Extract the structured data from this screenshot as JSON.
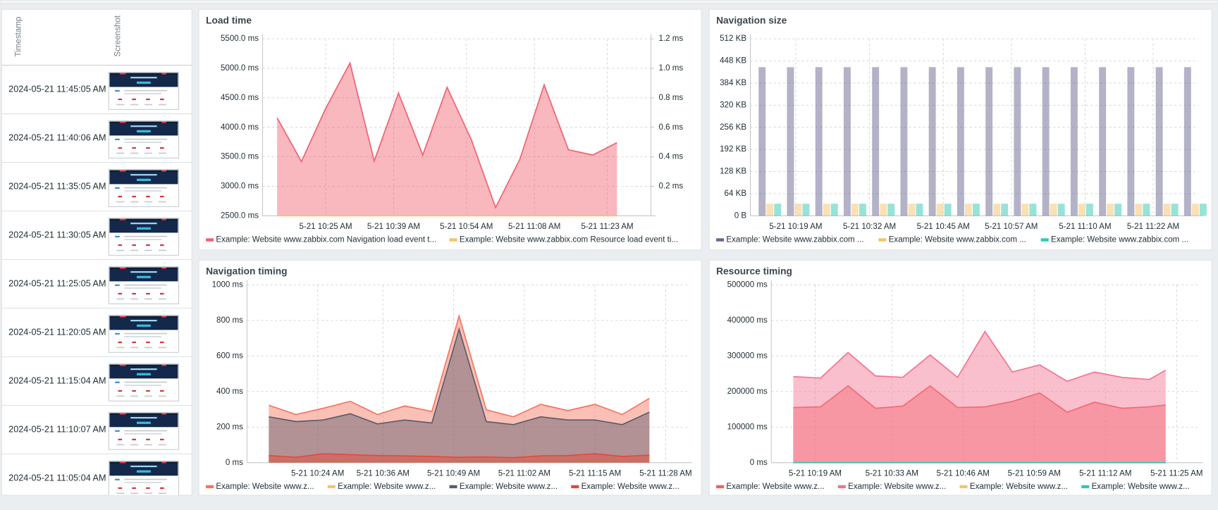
{
  "table": {
    "headers": [
      "Timestamp",
      "Screenshot"
    ],
    "rows": [
      "2024-05-21 11:45:05 AM",
      "2024-05-21 11:40:06 AM",
      "2024-05-21 11:35:05 AM",
      "2024-05-21 11:30:05 AM",
      "2024-05-21 11:25:05 AM",
      "2024-05-21 11:20:05 AM",
      "2024-05-21 11:15:04 AM",
      "2024-05-21 11:10:07 AM",
      "2024-05-21 11:05:04 AM"
    ]
  },
  "chart_data": [
    {
      "type": "area",
      "title": "Load time",
      "x": [
        "5-21 10:15 AM",
        "5-21 10:20 AM",
        "5-21 10:25 AM",
        "5-21 10:30 AM",
        "5-21 10:35 AM",
        "5-21 10:40 AM",
        "5-21 10:45 AM",
        "5-21 10:50 AM",
        "5-21 10:55 AM",
        "5-21 11:00 AM",
        "5-21 11:05 AM",
        "5-21 11:10 AM",
        "5-21 11:15 AM",
        "5-21 11:20 AM",
        "5-21 11:25 AM"
      ],
      "xlim": [
        "5-21 10:12 AM",
        "5-21 11:32 AM"
      ],
      "xticks": [
        "5-21 10:25 AM",
        "5-21 10:39 AM",
        "5-21 10:54 AM",
        "5-21 11:08 AM",
        "5-21 11:23 AM"
      ],
      "ylim": [
        2500,
        5500
      ],
      "yticks": [
        {
          "value": 2500,
          "label": "2500.0 ms"
        },
        {
          "value": 3000,
          "label": "3000.0 ms"
        },
        {
          "value": 3500,
          "label": "3500.0 ms"
        },
        {
          "value": 4000,
          "label": "4000.0 ms"
        },
        {
          "value": 4500,
          "label": "4500.0 ms"
        },
        {
          "value": 5000,
          "label": "5000.0 ms"
        },
        {
          "value": 5500,
          "label": "5500.0 ms"
        }
      ],
      "y2lim": [
        0,
        1.2
      ],
      "y2ticks": [
        {
          "value": 0.2,
          "label": "0.2 ms"
        },
        {
          "value": 0.4,
          "label": "0.4 ms"
        },
        {
          "value": 0.6,
          "label": "0.6 ms"
        },
        {
          "value": 0.8,
          "label": "0.8 ms"
        },
        {
          "value": 1.0,
          "label": "1.0 ms"
        },
        {
          "value": 1.2,
          "label": "1.2 ms"
        }
      ],
      "grid": true,
      "series": [
        {
          "name": "Example: Website www.zabbix.com Navigation load event t...",
          "color": "#f2606f",
          "values": [
            4160,
            3420,
            4320,
            5090,
            3430,
            4580,
            3530,
            4680,
            3790,
            2640,
            3460,
            4720,
            3620,
            3530,
            3740
          ]
        },
        {
          "name": "Example: Website www.zabbix.com Resource load event ti...",
          "color": "#f5c26b",
          "axis": "y2",
          "values": [
            0,
            0,
            0,
            0,
            0,
            0,
            0,
            0,
            0,
            0,
            0,
            0,
            0,
            0,
            0
          ]
        }
      ]
    },
    {
      "type": "bar",
      "title": "Navigation size",
      "x": [
        "5-21 10:13 AM",
        "5-21 10:18 AM",
        "5-21 10:23 AM",
        "5-21 10:28 AM",
        "5-21 10:33 AM",
        "5-21 10:38 AM",
        "5-21 10:43 AM",
        "5-21 10:48 AM",
        "5-21 10:53 AM",
        "5-21 10:58 AM",
        "5-21 11:03 AM",
        "5-21 11:08 AM",
        "5-21 11:13 AM",
        "5-21 11:18 AM",
        "5-21 11:23 AM",
        "5-21 11:28 AM"
      ],
      "xlim": [
        "5-21 10:11 AM",
        "5-21 11:30 AM"
      ],
      "xticks": [
        "5-21 10:19 AM",
        "5-21 10:32 AM",
        "5-21 10:45 AM",
        "5-21 10:57 AM",
        "5-21 11:10 AM",
        "5-21 11:22 AM"
      ],
      "ylim": [
        0,
        512
      ],
      "yticks": [
        {
          "value": 0,
          "label": "0 B"
        },
        {
          "value": 64,
          "label": "64 KB"
        },
        {
          "value": 128,
          "label": "128 KB"
        },
        {
          "value": 192,
          "label": "192 KB"
        },
        {
          "value": 256,
          "label": "256 KB"
        },
        {
          "value": 320,
          "label": "320 KB"
        },
        {
          "value": 384,
          "label": "384 KB"
        },
        {
          "value": 448,
          "label": "448 KB"
        },
        {
          "value": 512,
          "label": "512 KB"
        }
      ],
      "grid": true,
      "series": [
        {
          "name": "Example: Website www.zabbix.com ...",
          "color": "#67658f",
          "values": [
            430,
            430,
            430,
            430,
            430,
            430,
            430,
            430,
            430,
            430,
            430,
            430,
            430,
            430,
            430,
            430
          ]
        },
        {
          "name": "Example: Website www.zabbix.com ...",
          "color": "#f5c26b",
          "values": [
            35,
            35,
            35,
            35,
            35,
            35,
            35,
            35,
            35,
            35,
            35,
            35,
            35,
            35,
            35,
            35
          ]
        },
        {
          "name": "Example: Website www.zabbix.com ...",
          "color": "#2fc8b0",
          "values": [
            35,
            35,
            35,
            35,
            35,
            35,
            35,
            35,
            35,
            35,
            35,
            35,
            35,
            35,
            35,
            35
          ]
        }
      ]
    },
    {
      "type": "area",
      "title": "Navigation timing",
      "x": [
        "5-21 10:15 AM",
        "5-21 10:20 AM",
        "5-21 10:25 AM",
        "5-21 10:30 AM",
        "5-21 10:35 AM",
        "5-21 10:40 AM",
        "5-21 10:45 AM",
        "5-21 10:50 AM",
        "5-21 10:55 AM",
        "5-21 11:00 AM",
        "5-21 11:05 AM",
        "5-21 11:10 AM",
        "5-21 11:15 AM",
        "5-21 11:20 AM",
        "5-21 11:25 AM"
      ],
      "xlim": [
        "5-21 10:11 AM",
        "5-21 11:32 AM"
      ],
      "xticks": [
        "5-21 10:24 AM",
        "5-21 10:36 AM",
        "5-21 10:49 AM",
        "5-21 11:02 AM",
        "5-21 11:15 AM",
        "5-21 11:28 AM"
      ],
      "ylim": [
        0,
        1000
      ],
      "yticks": [
        {
          "value": 0,
          "label": "0 ms"
        },
        {
          "value": 200,
          "label": "200 ms"
        },
        {
          "value": 400,
          "label": "400 ms"
        },
        {
          "value": 600,
          "label": "600 ms"
        },
        {
          "value": 800,
          "label": "800 ms"
        },
        {
          "value": 1000,
          "label": "1000 ms"
        }
      ],
      "grid": true,
      "series": [
        {
          "name": "Example: Website www.z...",
          "color": "#f5735e",
          "values": [
            323,
            271,
            306,
            345,
            271,
            319,
            288,
            825,
            297,
            258,
            328,
            293,
            328,
            271,
            362
          ]
        },
        {
          "name": "Example: Website www.z...",
          "color": "#f5c26b",
          "values": [
            10,
            10,
            10,
            10,
            10,
            10,
            10,
            10,
            10,
            10,
            10,
            10,
            10,
            10,
            10
          ]
        },
        {
          "name": "Example: Website www.z...",
          "color": "#5b5b6b",
          "values": [
            258,
            231,
            240,
            275,
            218,
            240,
            223,
            751,
            231,
            214,
            258,
            240,
            240,
            214,
            284
          ]
        },
        {
          "name": "Example: Website www.z...",
          "color": "#e8453c",
          "values": [
            40,
            30,
            50,
            45,
            40,
            38,
            35,
            30,
            32,
            28,
            38,
            40,
            50,
            35,
            42
          ]
        }
      ]
    },
    {
      "type": "area",
      "title": "Resource timing",
      "x": [
        "5-21 10:15 AM",
        "5-21 10:20 AM",
        "5-21 10:25 AM",
        "5-21 10:30 AM",
        "5-21 10:35 AM",
        "5-21 10:40 AM",
        "5-21 10:45 AM",
        "5-21 10:50 AM",
        "5-21 10:55 AM",
        "5-21 11:00 AM",
        "5-21 11:05 AM",
        "5-21 11:10 AM",
        "5-21 11:15 AM",
        "5-21 11:20 AM",
        "5-21 11:23 AM"
      ],
      "xlim": [
        "5-21 10:11 AM",
        "5-21 11:29 AM"
      ],
      "xticks": [
        "5-21 10:19 AM",
        "5-21 10:33 AM",
        "5-21 10:46 AM",
        "5-21 10:59 AM",
        "5-21 11:12 AM",
        "5-21 11:25 AM"
      ],
      "ylim": [
        0,
        500000
      ],
      "yticks": [
        {
          "value": 0,
          "label": "0 ms"
        },
        {
          "value": 100000,
          "label": "100000 ms"
        },
        {
          "value": 200000,
          "label": "200000 ms"
        },
        {
          "value": 300000,
          "label": "300000 ms"
        },
        {
          "value": 400000,
          "label": "400000 ms"
        },
        {
          "value": 500000,
          "label": "500000 ms"
        }
      ],
      "grid": true,
      "series": [
        {
          "name": "Example: Website www.z...",
          "color": "#f5605a",
          "values": [
            155000,
            157000,
            216000,
            153000,
            159000,
            216000,
            155000,
            157000,
            172000,
            196000,
            142000,
            170000,
            153000,
            157000,
            162000
          ]
        },
        {
          "name": "Example: Website www.z...",
          "color": "#f5708f",
          "values": [
            242000,
            238000,
            310000,
            244000,
            240000,
            303000,
            240000,
            369000,
            255000,
            275000,
            229000,
            255000,
            240000,
            234000,
            260000
          ]
        },
        {
          "name": "Example: Website www.z...",
          "color": "#f5c26b",
          "values": [
            0,
            0,
            0,
            0,
            0,
            0,
            0,
            0,
            0,
            0,
            0,
            0,
            0,
            0,
            0
          ]
        },
        {
          "name": "Example: Website www.z...",
          "color": "#2fc8b0",
          "values": [
            0,
            0,
            0,
            0,
            0,
            0,
            0,
            0,
            0,
            0,
            0,
            0,
            0,
            0,
            0
          ]
        }
      ]
    }
  ]
}
